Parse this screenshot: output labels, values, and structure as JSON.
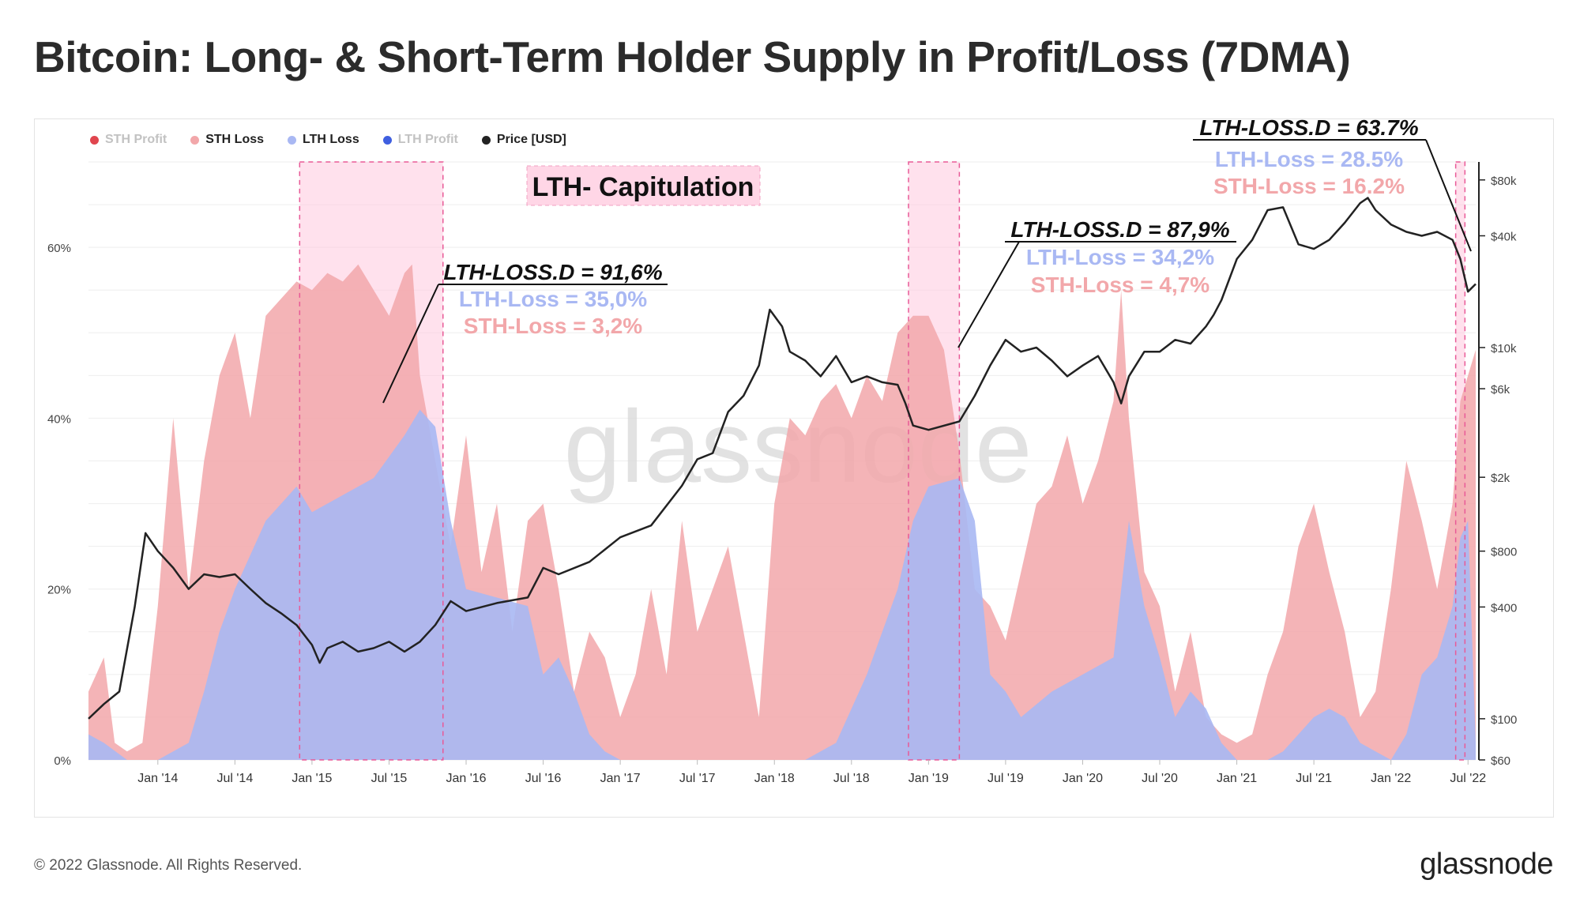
{
  "title": "Bitcoin: Long- & Short-Term Holder Supply in Profit/Loss (7DMA)",
  "footer": {
    "copyright": "© 2022 Glassnode. All Rights Reserved.",
    "brand": "glassnode"
  },
  "watermark": "glassnode",
  "colors": {
    "sth_profit": "#e0454e",
    "sth_loss": "#f2a7aa",
    "lth_loss": "#a9b8f3",
    "lth_profit": "#3f5fe0",
    "price": "#222222",
    "band": "#ffc9df",
    "band_border": "#e85a97"
  },
  "legend": [
    {
      "label": "STH Profit",
      "color": "#e0454e",
      "active": false
    },
    {
      "label": "STH Loss",
      "color": "#f2a7aa",
      "active": true
    },
    {
      "label": "LTH Loss",
      "color": "#a9b8f3",
      "active": true
    },
    {
      "label": "LTH Profit",
      "color": "#3f5fe0",
      "active": false
    },
    {
      "label": "Price [USD]",
      "color": "#222222",
      "active": true
    }
  ],
  "annotations": {
    "capitulation": "LTH- Capitulation",
    "a1": {
      "line1": "LTH-LOSS.D = 91,6%",
      "line2": "LTH-Loss = 35,0%",
      "line3": "STH-Loss = 3,2%"
    },
    "a2": {
      "line1": "LTH-LOSS.D = 87,9%",
      "line2": "LTH-Loss = 34,2%",
      "line3": "STH-Loss = 4,7%"
    },
    "a3": {
      "line1": "LTH-LOSS.D = 63.7%",
      "line2": "LTH-Loss = 28.5%",
      "line3": "STH-Loss = 16.2%"
    }
  },
  "chart_data": {
    "type": "area",
    "title": "Bitcoin: Long- & Short-Term Holder Supply in Profit/Loss (7DMA)",
    "x_ticks": [
      "Jan '14",
      "Jul '14",
      "Jan '15",
      "Jul '15",
      "Jan '16",
      "Jul '16",
      "Jan '17",
      "Jul '17",
      "Jan '18",
      "Jul '18",
      "Jan '19",
      "Jul '19",
      "Jan '20",
      "Jul '20",
      "Jan '21",
      "Jul '21",
      "Jan '22",
      "Jul '22"
    ],
    "x_range": [
      2013.55,
      2022.55
    ],
    "y_left_ticks": [
      "0%",
      "20%",
      "40%",
      "60%"
    ],
    "y_left_range": [
      0,
      70
    ],
    "y_right_ticks": [
      "$60",
      "$100",
      "$400",
      "$800",
      "$2k",
      "$6k",
      "$10k",
      "$40k",
      "$80k"
    ],
    "y_right_ticks_values": [
      60,
      100,
      400,
      800,
      2000,
      6000,
      10000,
      40000,
      80000
    ],
    "y_right_range": [
      60,
      100000
    ],
    "y_right_scale": "log",
    "capitulation_bands": [
      [
        2014.92,
        2015.85
      ],
      [
        2018.87,
        2019.2
      ],
      [
        2022.42,
        2022.48
      ]
    ],
    "series": [
      {
        "name": "STH Loss",
        "unit": "%",
        "x": [
          2013.55,
          2013.65,
          2013.72,
          2013.8,
          2013.9,
          2014.0,
          2014.1,
          2014.2,
          2014.3,
          2014.4,
          2014.5,
          2014.6,
          2014.7,
          2014.8,
          2014.9,
          2015.0,
          2015.1,
          2015.2,
          2015.3,
          2015.4,
          2015.5,
          2015.6,
          2015.65,
          2015.7,
          2015.8,
          2015.9,
          2016.0,
          2016.1,
          2016.2,
          2016.3,
          2016.4,
          2016.5,
          2016.6,
          2016.7,
          2016.8,
          2016.9,
          2017.0,
          2017.1,
          2017.2,
          2017.3,
          2017.4,
          2017.5,
          2017.6,
          2017.7,
          2017.8,
          2017.9,
          2018.0,
          2018.1,
          2018.2,
          2018.3,
          2018.4,
          2018.5,
          2018.6,
          2018.7,
          2018.8,
          2018.9,
          2019.0,
          2019.1,
          2019.2,
          2019.3,
          2019.4,
          2019.5,
          2019.6,
          2019.7,
          2019.8,
          2019.9,
          2020.0,
          2020.1,
          2020.2,
          2020.25,
          2020.3,
          2020.4,
          2020.5,
          2020.6,
          2020.7,
          2020.8,
          2020.9,
          2021.0,
          2021.1,
          2021.2,
          2021.3,
          2021.4,
          2021.5,
          2021.6,
          2021.7,
          2021.8,
          2021.9,
          2022.0,
          2022.1,
          2022.2,
          2022.3,
          2022.4,
          2022.45,
          2022.5,
          2022.55
        ],
        "values": [
          8,
          12,
          2,
          1,
          2,
          18,
          40,
          20,
          35,
          45,
          50,
          40,
          52,
          54,
          56,
          55,
          57,
          56,
          58,
          55,
          52,
          57,
          58,
          45,
          35,
          25,
          38,
          22,
          30,
          15,
          28,
          30,
          20,
          8,
          15,
          12,
          5,
          10,
          20,
          10,
          28,
          15,
          20,
          25,
          15,
          5,
          30,
          40,
          38,
          42,
          44,
          40,
          45,
          42,
          50,
          52,
          52,
          48,
          36,
          20,
          18,
          14,
          22,
          30,
          32,
          38,
          30,
          35,
          42,
          55,
          40,
          22,
          18,
          8,
          15,
          5,
          3,
          2,
          3,
          10,
          15,
          25,
          30,
          22,
          15,
          5,
          8,
          20,
          35,
          28,
          20,
          30,
          42,
          45,
          48
        ]
      },
      {
        "name": "LTH Loss",
        "unit": "%",
        "x": [
          2013.55,
          2013.65,
          2013.8,
          2014.0,
          2014.2,
          2014.3,
          2014.4,
          2014.5,
          2014.6,
          2014.7,
          2014.8,
          2014.9,
          2015.0,
          2015.2,
          2015.4,
          2015.6,
          2015.7,
          2015.8,
          2015.9,
          2016.0,
          2016.2,
          2016.4,
          2016.5,
          2016.6,
          2016.7,
          2016.8,
          2016.9,
          2017.0,
          2017.2,
          2017.5,
          2017.8,
          2018.0,
          2018.2,
          2018.4,
          2018.6,
          2018.8,
          2018.9,
          2019.0,
          2019.2,
          2019.3,
          2019.4,
          2019.5,
          2019.6,
          2019.8,
          2020.0,
          2020.2,
          2020.3,
          2020.4,
          2020.5,
          2020.6,
          2020.7,
          2020.8,
          2020.9,
          2021.0,
          2021.1,
          2021.2,
          2021.3,
          2021.4,
          2021.5,
          2021.6,
          2021.7,
          2021.8,
          2021.9,
          2022.0,
          2022.1,
          2022.2,
          2022.3,
          2022.4,
          2022.45,
          2022.5,
          2022.55
        ],
        "values": [
          3,
          2,
          0,
          0,
          2,
          8,
          15,
          20,
          24,
          28,
          30,
          32,
          29,
          31,
          33,
          38,
          41,
          39,
          28,
          20,
          19,
          18,
          10,
          12,
          8,
          3,
          1,
          0,
          0,
          0,
          0,
          0,
          0,
          2,
          10,
          20,
          28,
          32,
          33,
          28,
          10,
          8,
          5,
          8,
          10,
          12,
          28,
          18,
          12,
          5,
          8,
          6,
          2,
          0,
          0,
          0,
          1,
          3,
          5,
          6,
          5,
          2,
          1,
          0,
          3,
          10,
          12,
          18,
          26,
          28,
          2
        ]
      },
      {
        "name": "Price [USD]",
        "unit": "USD",
        "x": [
          2013.55,
          2013.65,
          2013.75,
          2013.85,
          2013.92,
          2014.0,
          2014.1,
          2014.2,
          2014.3,
          2014.4,
          2014.5,
          2014.6,
          2014.7,
          2014.8,
          2014.9,
          2015.0,
          2015.05,
          2015.1,
          2015.2,
          2015.3,
          2015.4,
          2015.5,
          2015.6,
          2015.7,
          2015.8,
          2015.9,
          2016.0,
          2016.2,
          2016.4,
          2016.5,
          2016.6,
          2016.8,
          2017.0,
          2017.2,
          2017.4,
          2017.5,
          2017.6,
          2017.7,
          2017.8,
          2017.9,
          2017.97,
          2018.05,
          2018.1,
          2018.2,
          2018.3,
          2018.4,
          2018.5,
          2018.6,
          2018.7,
          2018.8,
          2018.85,
          2018.9,
          2019.0,
          2019.2,
          2019.3,
          2019.4,
          2019.5,
          2019.6,
          2019.7,
          2019.8,
          2019.9,
          2020.0,
          2020.1,
          2020.2,
          2020.25,
          2020.3,
          2020.4,
          2020.5,
          2020.6,
          2020.7,
          2020.8,
          2020.85,
          2020.9,
          2021.0,
          2021.1,
          2021.2,
          2021.3,
          2021.4,
          2021.5,
          2021.6,
          2021.7,
          2021.8,
          2021.85,
          2021.9,
          2022.0,
          2022.1,
          2022.2,
          2022.3,
          2022.4,
          2022.45,
          2022.5,
          2022.55
        ],
        "values": [
          100,
          120,
          140,
          400,
          1000,
          800,
          650,
          500,
          600,
          580,
          600,
          500,
          420,
          370,
          320,
          250,
          200,
          240,
          260,
          230,
          240,
          260,
          230,
          260,
          320,
          430,
          380,
          420,
          450,
          650,
          600,
          700,
          950,
          1100,
          1800,
          2500,
          2700,
          4500,
          5500,
          8000,
          16000,
          13000,
          9500,
          8500,
          7000,
          9000,
          6500,
          7000,
          6500,
          6300,
          5000,
          3800,
          3600,
          4000,
          5500,
          8000,
          11000,
          9500,
          10000,
          8500,
          7000,
          8000,
          9000,
          6500,
          5000,
          7000,
          9500,
          9500,
          11000,
          10500,
          13000,
          15000,
          18000,
          30000,
          38000,
          55000,
          57000,
          36000,
          34000,
          38000,
          47000,
          60000,
          64000,
          55000,
          46000,
          42000,
          40000,
          42000,
          38000,
          30000,
          20000,
          22000
        ]
      }
    ]
  }
}
